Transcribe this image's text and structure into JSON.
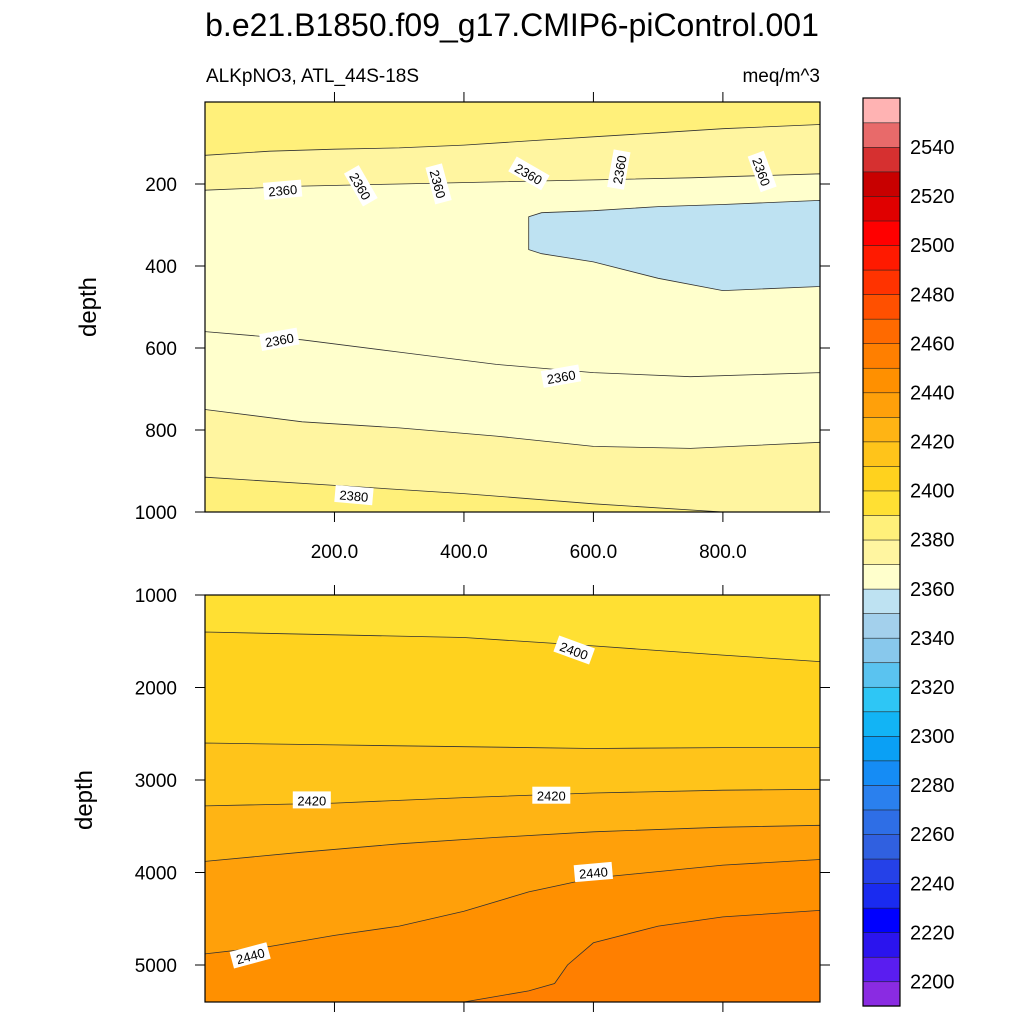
{
  "chart_data": {
    "type": "contour",
    "title": "b.e21.B1850.f09_g17.CMIP6-piControl.001",
    "variable": "ALKpNO3, ATL_44S-18S",
    "units": "meq/m^3",
    "x": {
      "tick_labels": [
        "200.0",
        "400.0",
        "600.0",
        "800.0"
      ],
      "ticks": [
        200,
        400,
        600,
        800
      ],
      "range": [
        0,
        950
      ]
    },
    "panels": [
      {
        "name": "upper",
        "ylabel": "depth",
        "yrange": [
          0,
          1000
        ],
        "ytick_values": [
          200,
          400,
          600,
          800,
          1000
        ],
        "ytick_labels": [
          "200",
          "400",
          "600",
          "800",
          "1000"
        ],
        "bands": [
          {
            "level": 2385,
            "upper": [
              [
                0,
                0
              ],
              [
                950,
                0
              ]
            ]
          },
          {
            "level": 2375,
            "upper": [
              [
                0,
                130
              ],
              [
                100,
                120
              ],
              [
                200,
                115
              ],
              [
                300,
                112
              ],
              [
                400,
                105
              ],
              [
                500,
                95
              ],
              [
                600,
                85
              ],
              [
                700,
                75
              ],
              [
                800,
                65
              ],
              [
                950,
                55
              ]
            ]
          },
          {
            "level": 2365,
            "upper": [
              [
                0,
                215
              ],
              [
                150,
                205
              ],
              [
                300,
                200
              ],
              [
                450,
                195
              ],
              [
                600,
                190
              ],
              [
                750,
                185
              ],
              [
                950,
                175
              ]
            ]
          },
          {
            "level": 2355,
            "upper": [
              [
                500,
                280
              ],
              [
                520,
                270
              ],
              [
                600,
                265
              ],
              [
                700,
                255
              ],
              [
                800,
                250
              ],
              [
                950,
                240
              ]
            ],
            "lower": [
              [
                500,
                360
              ],
              [
                520,
                370
              ],
              [
                600,
                390
              ],
              [
                700,
                430
              ],
              [
                800,
                460
              ],
              [
                950,
                450
              ]
            ]
          },
          {
            "level": 2365,
            "upper": [
              [
                0,
                560
              ],
              [
                150,
                580
              ],
              [
                300,
                610
              ],
              [
                450,
                640
              ],
              [
                600,
                660
              ],
              [
                750,
                670
              ],
              [
                950,
                660
              ]
            ]
          },
          {
            "level": 2375,
            "upper": [
              [
                0,
                750
              ],
              [
                150,
                780
              ],
              [
                300,
                795
              ],
              [
                450,
                815
              ],
              [
                600,
                840
              ],
              [
                750,
                845
              ],
              [
                950,
                830
              ]
            ]
          },
          {
            "level": 2385,
            "upper": [
              [
                0,
                915
              ],
              [
                200,
                935
              ],
              [
                400,
                955
              ],
              [
                600,
                980
              ],
              [
                800,
                1000
              ],
              [
                950,
                1000
              ]
            ]
          }
        ],
        "labels": [
          {
            "text": "2360",
            "x": 120,
            "y": 215,
            "rot": -5
          },
          {
            "text": "2360",
            "x": 240,
            "y": 205,
            "rot": 60
          },
          {
            "text": "2360",
            "x": 360,
            "y": 200,
            "rot": 75
          },
          {
            "text": "2360",
            "x": 500,
            "y": 175,
            "rot": 30
          },
          {
            "text": "2360",
            "x": 640,
            "y": 165,
            "rot": -80
          },
          {
            "text": "2360",
            "x": 860,
            "y": 170,
            "rot": 70
          },
          {
            "text": "2360",
            "x": 115,
            "y": 580,
            "rot": -10
          },
          {
            "text": "2360",
            "x": 550,
            "y": 670,
            "rot": -10
          },
          {
            "text": "2380",
            "x": 230,
            "y": 960,
            "rot": 5
          }
        ]
      },
      {
        "name": "lower",
        "ylabel": "depth",
        "yrange": [
          1000,
          5400
        ],
        "ytick_values": [
          1000,
          2000,
          3000,
          4000,
          5000
        ],
        "ytick_labels": [
          "1000",
          "2000",
          "3000",
          "4000",
          "5000"
        ],
        "bands": [
          {
            "level": 2395,
            "upper": [
              [
                0,
                1000
              ],
              [
                950,
                1000
              ]
            ]
          },
          {
            "level": 2405,
            "upper": [
              [
                0,
                1400
              ],
              [
                200,
                1430
              ],
              [
                400,
                1460
              ],
              [
                600,
                1550
              ],
              [
                800,
                1650
              ],
              [
                950,
                1720
              ]
            ]
          },
          {
            "level": 2415,
            "upper": [
              [
                0,
                2600
              ],
              [
                200,
                2620
              ],
              [
                400,
                2640
              ],
              [
                600,
                2660
              ],
              [
                800,
                2650
              ],
              [
                950,
                2650
              ]
            ]
          },
          {
            "level": 2425,
            "upper": [
              [
                0,
                3280
              ],
              [
                200,
                3250
              ],
              [
                400,
                3190
              ],
              [
                600,
                3140
              ],
              [
                800,
                3110
              ],
              [
                950,
                3100
              ]
            ]
          },
          {
            "level": 2435,
            "upper": [
              [
                0,
                3880
              ],
              [
                150,
                3780
              ],
              [
                300,
                3690
              ],
              [
                450,
                3620
              ],
              [
                600,
                3560
              ],
              [
                800,
                3510
              ],
              [
                950,
                3490
              ]
            ]
          },
          {
            "level": 2445,
            "upper": [
              [
                0,
                4880
              ],
              [
                100,
                4800
              ],
              [
                200,
                4680
              ],
              [
                300,
                4580
              ],
              [
                400,
                4420
              ],
              [
                500,
                4210
              ],
              [
                600,
                4060
              ],
              [
                800,
                3920
              ],
              [
                950,
                3860
              ]
            ]
          },
          {
            "level": 2455,
            "upper": [
              [
                400,
                5400
              ],
              [
                500,
                5280
              ],
              [
                540,
                5200
              ],
              [
                560,
                5000
              ],
              [
                600,
                4760
              ],
              [
                700,
                4580
              ],
              [
                800,
                4480
              ],
              [
                950,
                4410
              ]
            ]
          }
        ],
        "labels": [
          {
            "text": "2400",
            "x": 570,
            "y": 1600,
            "rot": 20
          },
          {
            "text": "2420",
            "x": 165,
            "y": 3220,
            "rot": 0
          },
          {
            "text": "2420",
            "x": 535,
            "y": 3170,
            "rot": 0
          },
          {
            "text": "2440",
            "x": 600,
            "y": 4000,
            "rot": -5
          },
          {
            "text": "2440",
            "x": 70,
            "y": 4900,
            "rot": -15
          }
        ]
      }
    ],
    "colorbar": {
      "levels": [
        2200,
        2210,
        2220,
        2230,
        2240,
        2250,
        2260,
        2270,
        2280,
        2290,
        2300,
        2310,
        2320,
        2330,
        2340,
        2350,
        2360,
        2370,
        2380,
        2390,
        2400,
        2410,
        2420,
        2430,
        2440,
        2450,
        2460,
        2470,
        2480,
        2490,
        2500,
        2510,
        2520,
        2530,
        2540,
        2550
      ],
      "labels": [
        "2200",
        "2220",
        "2240",
        "2260",
        "2280",
        "2300",
        "2320",
        "2340",
        "2360",
        "2380",
        "2400",
        "2420",
        "2440",
        "2460",
        "2480",
        "2500",
        "2520",
        "2540"
      ],
      "colors": [
        "#8a2be2",
        "#5a1df0",
        "#2b14ee",
        "#0000ff",
        "#1a2bf0",
        "#2541e8",
        "#3060e0",
        "#2e6ee6",
        "#2a80ee",
        "#158cf5",
        "#0aa0f5",
        "#12b4f5",
        "#2ec6f5",
        "#5ac3f0",
        "#88c8ec",
        "#a3d0ec",
        "#bee2f2",
        "#ffffcc",
        "#fff5a0",
        "#fff07a",
        "#ffe033",
        "#ffd21e",
        "#ffc41a",
        "#ffb414",
        "#ffa00a",
        "#ff9000",
        "#ff7f00",
        "#ff6a00",
        "#ff5000",
        "#ff3300",
        "#ff1a00",
        "#ff0000",
        "#e00000",
        "#c80000",
        "#d63030",
        "#e86a6a",
        "#ffb3b3"
      ]
    }
  }
}
